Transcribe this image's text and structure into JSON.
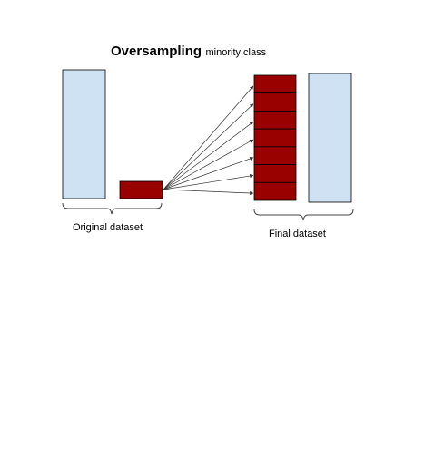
{
  "title": {
    "main": "Oversampling",
    "sub": "minority class"
  },
  "original": {
    "label": "Original dataset"
  },
  "final": {
    "label": "Final dataset"
  },
  "minority_copies": 7,
  "colors": {
    "majority_fill": "#cfe2f3",
    "minority_fill": "#990000",
    "stroke": "#000000",
    "brace": "#444444"
  }
}
